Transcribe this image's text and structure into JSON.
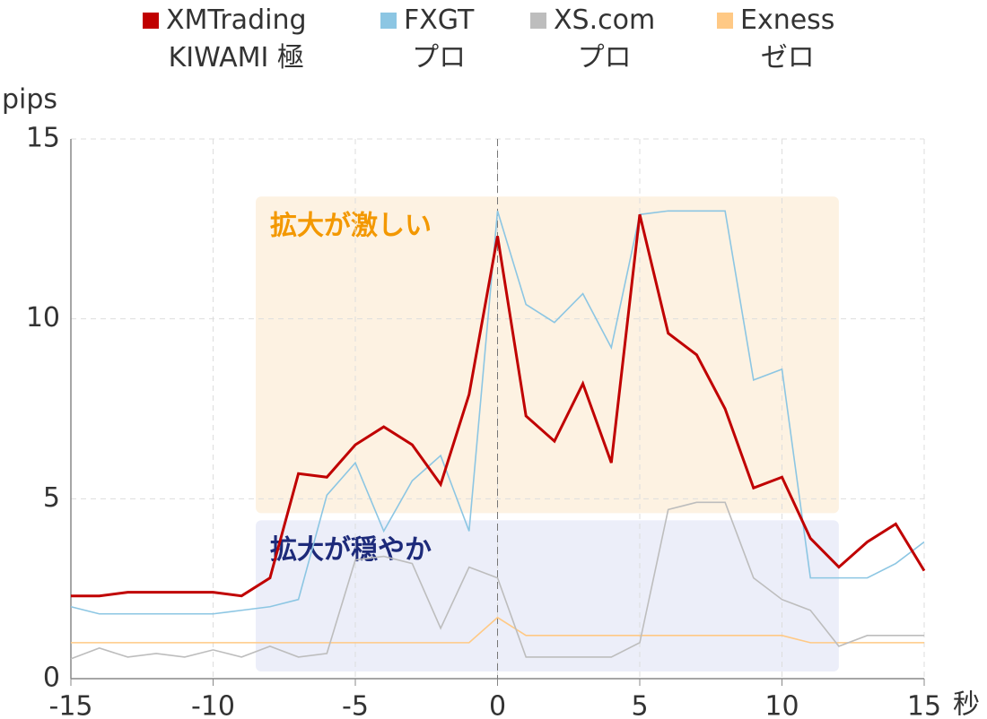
{
  "chart_data": {
    "type": "line",
    "y_label": "pips",
    "x_label": "秒",
    "x": [
      -15,
      -14,
      -13,
      -12,
      -11,
      -10,
      -9,
      -8,
      -7,
      -6,
      -5,
      -4,
      -3,
      -2,
      -1,
      0,
      1,
      2,
      3,
      4,
      5,
      6,
      7,
      8,
      9,
      10,
      11,
      12,
      13,
      14,
      15
    ],
    "series": [
      {
        "name": "XMTrading\nKIWAMI 極",
        "color": "#c00000",
        "width": 3,
        "values": [
          2.3,
          2.3,
          2.4,
          2.4,
          2.4,
          2.4,
          2.3,
          2.8,
          5.7,
          5.6,
          6.5,
          7.0,
          6.5,
          5.4,
          7.9,
          12.3,
          7.3,
          6.6,
          8.2,
          6.0,
          12.9,
          9.6,
          9.0,
          7.5,
          5.3,
          5.6,
          3.9,
          3.1,
          3.8,
          4.3,
          3.0
        ]
      },
      {
        "name": "FXGT\nプロ",
        "color": "#8cc6e3",
        "width": 1.6,
        "values": [
          2.0,
          1.8,
          1.8,
          1.8,
          1.8,
          1.8,
          1.9,
          2.0,
          2.2,
          5.1,
          6.0,
          4.1,
          5.5,
          6.2,
          4.1,
          13.0,
          10.4,
          9.9,
          10.7,
          9.2,
          12.9,
          13.0,
          13.0,
          13.0,
          8.3,
          8.6,
          2.8,
          2.8,
          2.8,
          3.2,
          3.8
        ]
      },
      {
        "name": "XS.com\nプロ",
        "color": "#bdbdbd",
        "width": 1.6,
        "values": [
          0.55,
          0.85,
          0.6,
          0.7,
          0.6,
          0.8,
          0.6,
          0.9,
          0.6,
          0.7,
          3.3,
          3.4,
          3.2,
          1.4,
          3.1,
          2.8,
          0.6,
          0.6,
          0.6,
          0.6,
          1.0,
          4.7,
          4.9,
          4.9,
          2.8,
          2.2,
          1.9,
          0.9,
          1.2,
          1.2,
          1.2
        ]
      },
      {
        "name": "Exness\nゼロ",
        "color": "#ffc985",
        "width": 1.6,
        "values": [
          1.0,
          1.0,
          1.0,
          1.0,
          1.0,
          1.0,
          1.0,
          1.0,
          1.0,
          1.0,
          1.0,
          1.0,
          1.0,
          1.0,
          1.0,
          1.7,
          1.2,
          1.2,
          1.2,
          1.2,
          1.2,
          1.2,
          1.2,
          1.2,
          1.2,
          1.2,
          1.0,
          1.0,
          1.0,
          1.0,
          1.0
        ]
      }
    ],
    "regions": [
      {
        "label": "拡大が激しい",
        "x": [
          -8.5,
          12
        ],
        "y": [
          4.6,
          13.4
        ],
        "color": "#fdf2e2",
        "text_color": "#f39800"
      },
      {
        "label": "拡大が穏やか",
        "x": [
          -8.5,
          12
        ],
        "y": [
          0.2,
          4.4
        ],
        "color": "#eceef9",
        "text_color": "#1d2a7a"
      }
    ],
    "reference_x": 0,
    "xlim": [
      -15,
      15
    ],
    "xticks": [
      -15,
      -10,
      -5,
      0,
      5,
      10,
      15
    ],
    "ylim": [
      0,
      15
    ],
    "yticks": [
      0,
      5,
      10,
      15
    ],
    "grid": true
  }
}
